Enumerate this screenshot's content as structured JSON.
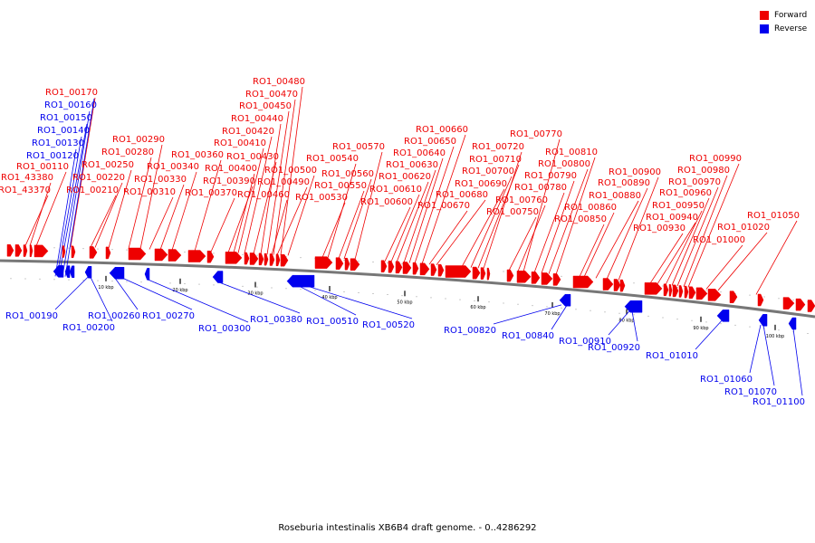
{
  "title": "Roseburia intestinalis XB6B4 draft genome. - 0..4286292",
  "legend": [
    {
      "label": "Forward",
      "color": "#ee0000"
    },
    {
      "label": "Reverse",
      "color": "#0000ee"
    }
  ],
  "colors": {
    "forward": "#ee0000",
    "reverse": "#0000ee",
    "backbone": "#777777"
  },
  "scale_labels": [
    "10 kbp",
    "20 kbp",
    "30 kbp",
    "40 kbp",
    "50 kbp",
    "60 kbp",
    "70 kbp",
    "80 kbp",
    "90 kbp",
    "100 kbp"
  ],
  "forward_labels": [
    "RO1_43370",
    "RO1_43380",
    "RO1_00110",
    "RO1_00170",
    "RO1_00210",
    "RO1_00220",
    "RO1_00250",
    "RO1_00280",
    "RO1_00290",
    "RO1_00310",
    "RO1_00330",
    "RO1_00340",
    "RO1_00360",
    "RO1_00370",
    "RO1_00390",
    "RO1_00400",
    "RO1_00410",
    "RO1_00420",
    "RO1_00430",
    "RO1_00440",
    "RO1_00450",
    "RO1_00460",
    "RO1_00470",
    "RO1_00480",
    "RO1_00490",
    "RO1_00500",
    "RO1_00530",
    "RO1_00540",
    "RO1_00550",
    "RO1_00560",
    "RO1_00570",
    "RO1_00600",
    "RO1_00610",
    "RO1_00620",
    "RO1_00630",
    "RO1_00640",
    "RO1_00650",
    "RO1_00660",
    "RO1_00670",
    "RO1_00680",
    "RO1_00690",
    "RO1_00700",
    "RO1_00710",
    "RO1_00720",
    "RO1_00750",
    "RO1_00760",
    "RO1_00770",
    "RO1_00780",
    "RO1_00790",
    "RO1_00800",
    "RO1_00810",
    "RO1_00850",
    "RO1_00860",
    "RO1_00880",
    "RO1_00890",
    "RO1_00900",
    "RO1_00930",
    "RO1_00940",
    "RO1_00950",
    "RO1_00960",
    "RO1_00970",
    "RO1_00980",
    "RO1_00990",
    "RO1_01000",
    "RO1_01020",
    "RO1_01050"
  ],
  "reverse_labels": [
    "RO1_00120",
    "RO1_00130",
    "RO1_00140",
    "RO1_00150",
    "RO1_00160",
    "RO1_00190",
    "RO1_00200",
    "RO1_00260",
    "RO1_00270",
    "RO1_00300",
    "RO1_00380",
    "RO1_00510",
    "RO1_00520",
    "RO1_00820",
    "RO1_00840",
    "RO1_00910",
    "RO1_00920",
    "RO1_01010",
    "RO1_01060",
    "RO1_01070",
    "RO1_01100"
  ]
}
